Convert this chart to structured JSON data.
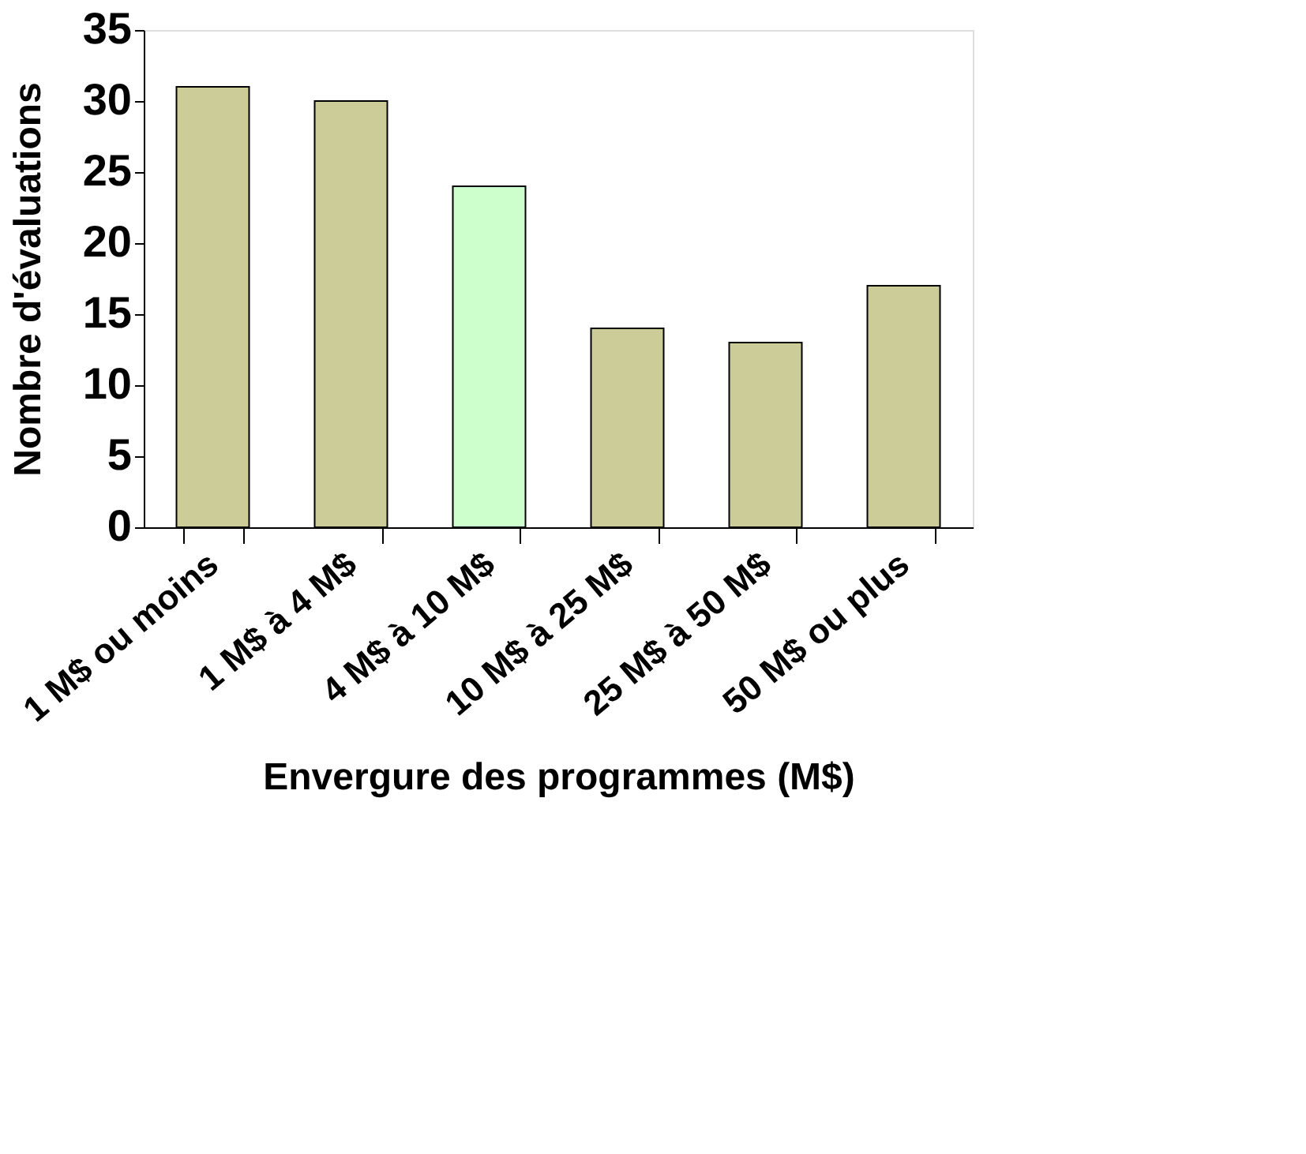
{
  "chart_data": {
    "type": "bar",
    "categories": [
      "1 M$ ou moins",
      "1 M$ à 4 M$",
      "4 M$ à 10 M$",
      "10 M$ à 25 M$",
      "25 M$ à 50 M$",
      "50 M$ ou plus"
    ],
    "values": [
      31,
      30,
      24,
      14,
      13,
      17
    ],
    "colors": [
      "#cccc99",
      "#cccc99",
      "#ccffcc",
      "#cccc99",
      "#cccc99",
      "#cccc99"
    ],
    "xlabel": "Envergure des programmes (M$)",
    "ylabel": "Nombre d'évaluations",
    "ylim": [
      0,
      35
    ],
    "yticks": [
      0,
      5,
      10,
      15,
      20,
      25,
      30,
      35
    ],
    "grid": false,
    "legend": false
  }
}
